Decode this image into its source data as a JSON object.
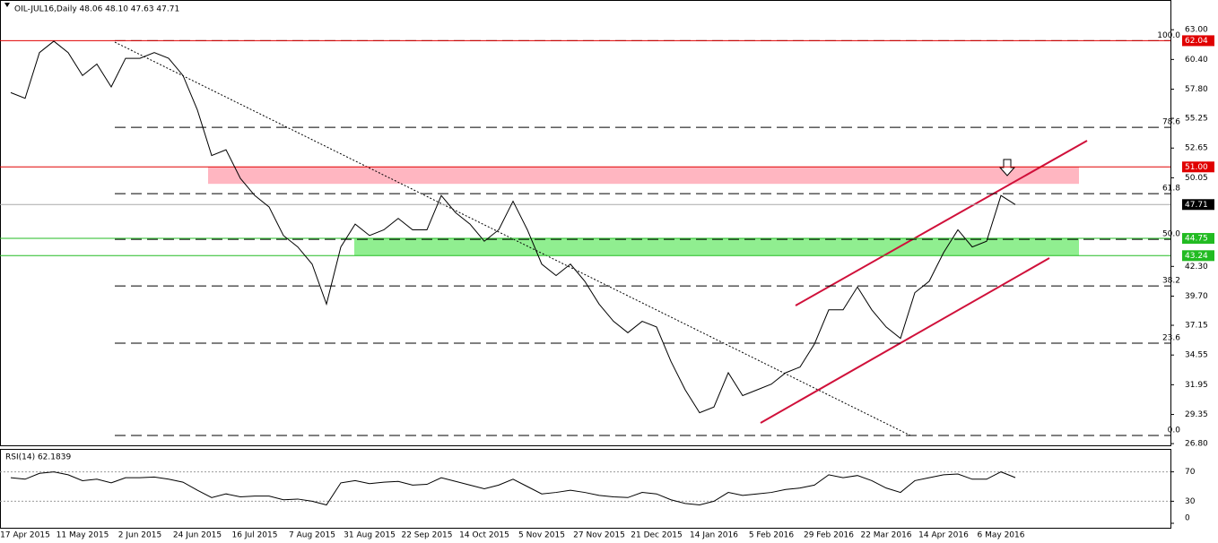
{
  "chart_data": [
    {
      "type": "line",
      "title": "OIL-JUL16,Daily 48.06 48.10 47.63 47.71",
      "categories": [
        null,
        "17 Apr 2015",
        null,
        null,
        null,
        "11 May 2015",
        null,
        null,
        null,
        "2 Jun 2015",
        null,
        null,
        null,
        "24 Jun 2015",
        null,
        null,
        null,
        "16 Jul 2015",
        null,
        null,
        null,
        "7 Aug 2015",
        null,
        null,
        null,
        "31 Aug 2015",
        null,
        null,
        null,
        "22 Sep 2015",
        null,
        null,
        null,
        "14 Oct 2015",
        null,
        null,
        null,
        "5 Nov 2015",
        null,
        null,
        null,
        "27 Nov 2015",
        null,
        null,
        null,
        "21 Dec 2015",
        null,
        null,
        null,
        "14 Jan 2016",
        null,
        null,
        null,
        "5 Feb 2016",
        null,
        null,
        null,
        "29 Feb 2016",
        null,
        null,
        null,
        "22 Mar 2016",
        null,
        null,
        null,
        "14 Apr 2016",
        null,
        null,
        null,
        "6 May 2016",
        null
      ],
      "series": [
        {
          "color": "#000000",
          "values": [
            57.5,
            57,
            61,
            62,
            61,
            59,
            60,
            58,
            60.5,
            60.5,
            61,
            60.5,
            59,
            56,
            52,
            52.5,
            50,
            48.5,
            47.5,
            45,
            44,
            42.5,
            39,
            44,
            46,
            45,
            45.5,
            46.5,
            45.5,
            45.5,
            48.5,
            47,
            46,
            44.5,
            45.5,
            48,
            45.5,
            42.5,
            41.5,
            42.5,
            41,
            39,
            37.5,
            36.5,
            37.5,
            37,
            34,
            31.5,
            29.5,
            30,
            33,
            31,
            31.5,
            32,
            33,
            33.5,
            35.5,
            38.5,
            38.5,
            40.5,
            38.5,
            37,
            36,
            40,
            41,
            43.5,
            45.5,
            44,
            44.5,
            48.5,
            47.71
          ]
        }
      ],
      "ylim": [
        26.65,
        65.6
      ],
      "yticks": [
        {
          "value": 63,
          "label": "63.00"
        },
        {
          "value": 60.4,
          "label": "60.40"
        },
        {
          "value": 57.8,
          "label": "57.80"
        },
        55.25,
        52.65,
        50.05,
        {
          "value": 42.3,
          "label": "42.30"
        },
        {
          "value": 39.7,
          "label": "39.70"
        },
        37.15,
        34.55,
        31.95,
        29.35,
        {
          "value": 26.8,
          "label": "26.80"
        }
      ],
      "levels": [
        {
          "value": 62.04,
          "label": "62.04",
          "color": "#e00000"
        },
        {
          "value": 51,
          "label": "51.00",
          "color": "#e00000"
        },
        {
          "value": 47.71,
          "label": "47.71",
          "color": "#000000"
        },
        {
          "value": 44.75,
          "label": "44.75",
          "color": "#22bb22"
        },
        {
          "value": 43.24,
          "label": "43.24",
          "color": "#22bb22"
        }
      ],
      "bands": [
        {
          "range": [
            49.52,
            51
          ],
          "color": "#ffb6c1"
        },
        {
          "range": [
            43.24,
            44.75
          ],
          "color": "#90ee90"
        }
      ],
      "fib": [
        {
          "label": "100.0",
          "value": 62.04
        },
        {
          "label": "78.6",
          "value": 54.46
        },
        {
          "label": "61.8",
          "value": 48.66
        },
        {
          "label": "50.0",
          "value": 44.67
        },
        {
          "label": "38.2",
          "value": 40.59
        },
        {
          "label": "23.6",
          "value": 35.58
        },
        {
          "label": "0.0",
          "value": 27.51
        }
      ]
    },
    {
      "type": "line",
      "title": "RSI(14) 62.1839",
      "series": [
        {
          "color": "#000000",
          "values": [
            62,
            60,
            68,
            70,
            66,
            58,
            60,
            55,
            62,
            62,
            63,
            60,
            56,
            45,
            35,
            40,
            36,
            37,
            37,
            32,
            33,
            30,
            25,
            55,
            58,
            54,
            56,
            57,
            52,
            53,
            62,
            57,
            52,
            47,
            52,
            60,
            50,
            40,
            42,
            45,
            42,
            38,
            36,
            35,
            42,
            40,
            32,
            27,
            25,
            30,
            42,
            38,
            40,
            42,
            46,
            48,
            52,
            66,
            62,
            65,
            58,
            48,
            42,
            58,
            62,
            66,
            67,
            60,
            60,
            70,
            62.18
          ]
        }
      ],
      "ylim": [
        0,
        100
      ],
      "yticks": [
        70,
        30,
        0
      ],
      "levels": [
        70,
        30
      ]
    }
  ]
}
